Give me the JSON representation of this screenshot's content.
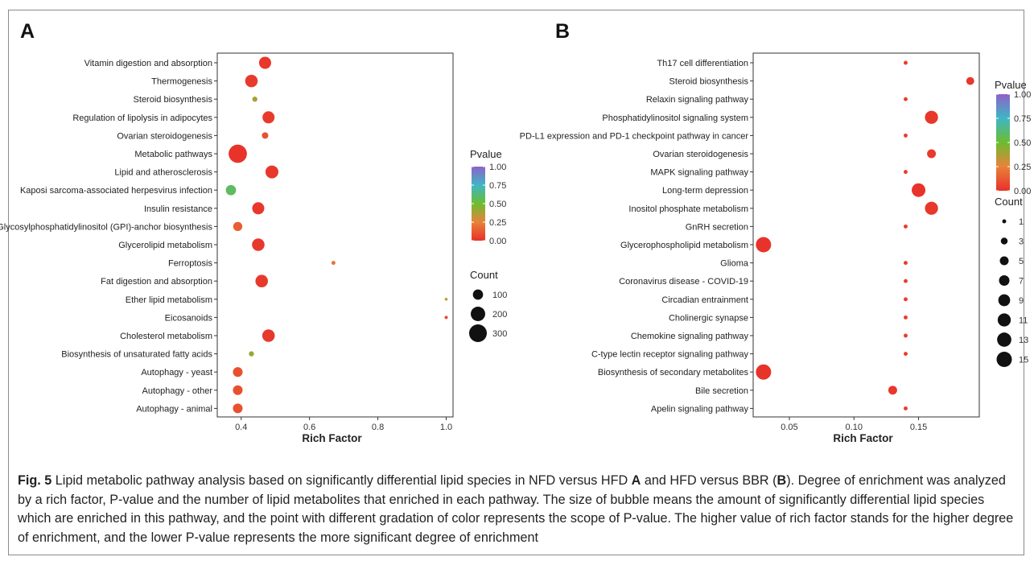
{
  "panels_figure": {
    "caption": {
      "lead": "Fig. 5",
      "part1": "  Lipid metabolic pathway analysis based on significantly differential lipid species in NFD versus HFD ",
      "bold_a": "A",
      "part2": " and HFD versus BBR (",
      "bold_b": "B",
      "part3": "). Degree of enrichment was analyzed by a rich factor, P-value and the number of lipid metabolites that enriched in each pathway. The size of bubble means the amount of significantly differential lipid species which are enriched in this pathway, and the point with different gradation of color represents the scope of P-value. The higher value of rich factor stands for the higher degree of enrichment, and the lower P-value represents the more significant degree of enrichment"
    }
  },
  "chart_data": [
    {
      "panel_label": "A",
      "type": "scatter",
      "xlabel": "Rich Factor",
      "ylabel": "",
      "xticks": [
        0.4,
        0.6,
        0.8,
        1.0
      ],
      "xtick_labels": [
        "0.4",
        "0.6",
        "0.8",
        "1.0"
      ],
      "xlim": [
        0.33,
        1.02
      ],
      "color_legend": {
        "title": "Pvalue",
        "ticks": [
          "1.00",
          "0.75",
          "0.50",
          "0.25",
          "0.00"
        ]
      },
      "size_legend": {
        "title": "Count",
        "labels": [
          "100",
          "200",
          "300"
        ],
        "values": [
          100,
          200,
          300
        ]
      },
      "categories": [
        "Vitamin digestion and absorption",
        "Thermogenesis",
        "Steroid biosynthesis",
        "Regulation of lipolysis in adipocytes",
        "Ovarian steroidogenesis",
        "Metabolic pathways",
        "Lipid and atherosclerosis",
        "Kaposi sarcoma-associated herpesvirus infection",
        "Insulin resistance",
        "Glycosylphosphatidylinositol (GPI)-anchor biosynthesis",
        "Glycerolipid metabolism",
        "Ferroptosis",
        "Fat digestion and absorption",
        "Ether lipid metabolism",
        "Eicosanoids",
        "Cholesterol metabolism",
        "Biosynthesis of unsaturated fatty acids",
        "Autophagy - yeast",
        "Autophagy - other",
        "Autophagy - animal"
      ],
      "points": [
        {
          "x": 0.47,
          "count": 140,
          "p": 0.02
        },
        {
          "x": 0.43,
          "count": 150,
          "p": 0.03
        },
        {
          "x": 0.44,
          "count": 25,
          "p": 0.38
        },
        {
          "x": 0.48,
          "count": 140,
          "p": 0.03
        },
        {
          "x": 0.47,
          "count": 40,
          "p": 0.1
        },
        {
          "x": 0.39,
          "count": 320,
          "p": 0.01
        },
        {
          "x": 0.49,
          "count": 160,
          "p": 0.02
        },
        {
          "x": 0.37,
          "count": 100,
          "p": 0.58
        },
        {
          "x": 0.45,
          "count": 140,
          "p": 0.02
        },
        {
          "x": 0.39,
          "count": 80,
          "p": 0.14
        },
        {
          "x": 0.45,
          "count": 150,
          "p": 0.02
        },
        {
          "x": 0.67,
          "count": 15,
          "p": 0.2
        },
        {
          "x": 0.46,
          "count": 150,
          "p": 0.03
        },
        {
          "x": 1.0,
          "count": 8,
          "p": 0.35
        },
        {
          "x": 1.0,
          "count": 10,
          "p": 0.07
        },
        {
          "x": 0.48,
          "count": 150,
          "p": 0.02
        },
        {
          "x": 0.43,
          "count": 25,
          "p": 0.42
        },
        {
          "x": 0.39,
          "count": 90,
          "p": 0.1
        },
        {
          "x": 0.39,
          "count": 90,
          "p": 0.1
        },
        {
          "x": 0.39,
          "count": 90,
          "p": 0.1
        }
      ]
    },
    {
      "panel_label": "B",
      "type": "scatter",
      "xlabel": "Rich Factor",
      "ylabel": "",
      "xticks": [
        0.05,
        0.1,
        0.15
      ],
      "xtick_labels": [
        "0.05",
        "0.10",
        "0.15"
      ],
      "xlim": [
        0.022,
        0.197
      ],
      "color_legend": {
        "title": "Pvalue",
        "ticks": [
          "1.00",
          "0.75",
          "0.50",
          "0.25",
          "0.00"
        ]
      },
      "size_legend": {
        "title": "Count",
        "labels": [
          "1",
          "3",
          "5",
          "7",
          "9",
          "11",
          "13",
          "15"
        ],
        "values": [
          1,
          3,
          5,
          7,
          9,
          11,
          13,
          15
        ]
      },
      "categories": [
        "Th17 cell differentiation",
        "Steroid biosynthesis",
        "Relaxin signaling pathway",
        "Phosphatidylinositol signaling system",
        "PD-L1 expression and PD-1 checkpoint pathway in cancer",
        "Ovarian steroidogenesis",
        "MAPK signaling pathway",
        "Long-term depression",
        "Inositol phosphate metabolism",
        "GnRH secretion",
        "Glycerophospholipid metabolism",
        "Glioma",
        "Coronavirus disease - COVID-19",
        "Circadian entrainment",
        "Cholinergic synapse",
        "Chemokine signaling pathway",
        "C-type lectin receptor signaling pathway",
        "Biosynthesis of secondary metabolites",
        "Bile secretion",
        "Apelin signaling pathway"
      ],
      "points": [
        {
          "x": 0.14,
          "count": 1,
          "p": 0.04
        },
        {
          "x": 0.19,
          "count": 4,
          "p": 0.02
        },
        {
          "x": 0.14,
          "count": 1,
          "p": 0.04
        },
        {
          "x": 0.16,
          "count": 11,
          "p": 0.02
        },
        {
          "x": 0.14,
          "count": 1,
          "p": 0.04
        },
        {
          "x": 0.16,
          "count": 5,
          "p": 0.03
        },
        {
          "x": 0.14,
          "count": 1,
          "p": 0.04
        },
        {
          "x": 0.15,
          "count": 12,
          "p": 0.01
        },
        {
          "x": 0.16,
          "count": 11,
          "p": 0.02
        },
        {
          "x": 0.14,
          "count": 1,
          "p": 0.04
        },
        {
          "x": 0.03,
          "count": 15,
          "p": 0.01
        },
        {
          "x": 0.14,
          "count": 1,
          "p": 0.04
        },
        {
          "x": 0.14,
          "count": 1,
          "p": 0.04
        },
        {
          "x": 0.14,
          "count": 1,
          "p": 0.04
        },
        {
          "x": 0.14,
          "count": 1,
          "p": 0.04
        },
        {
          "x": 0.14,
          "count": 1,
          "p": 0.04
        },
        {
          "x": 0.14,
          "count": 1,
          "p": 0.04
        },
        {
          "x": 0.03,
          "count": 15,
          "p": 0.01
        },
        {
          "x": 0.13,
          "count": 5,
          "p": 0.02
        },
        {
          "x": 0.14,
          "count": 1,
          "p": 0.04
        }
      ]
    }
  ],
  "colors": {
    "pvalue_gradient": [
      "#e8302a",
      "#e8823a",
      "#6cbd2f",
      "#3fb6c6",
      "#8e62c7"
    ],
    "axis": "#333333",
    "size_legend_dot": "#111111"
  }
}
